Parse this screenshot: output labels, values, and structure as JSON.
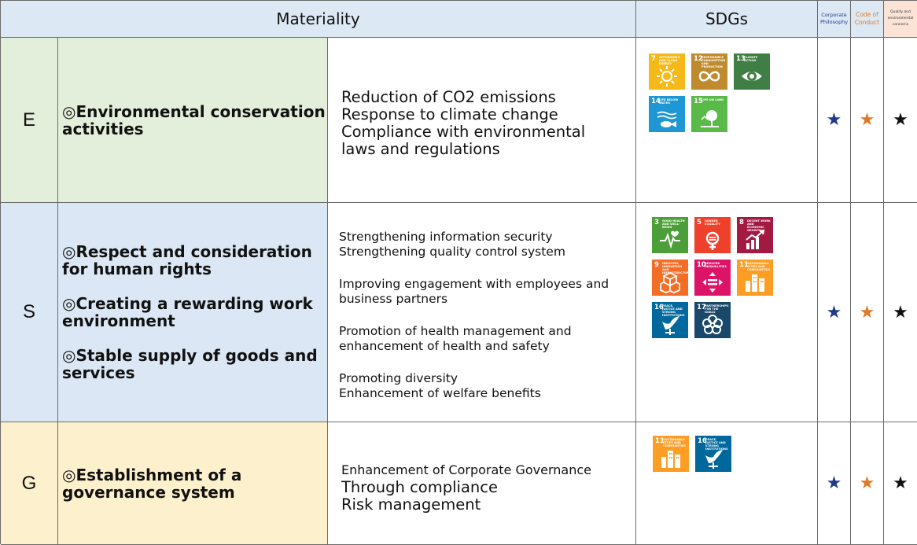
{
  "header": {
    "materiality": "Materiality",
    "sdgs": "SDGs",
    "col1": "Corporate Philosophy",
    "col2": "Code of Conduct",
    "col3": "Quality and environmental concerns"
  },
  "star_glyph": "★",
  "colors": {
    "star_navy": "#1f3a8a",
    "star_orange": "#e07a26",
    "star_black": "#111111"
  },
  "rows": {
    "e": {
      "letter": "E",
      "materiality": [
        "◎Environmental conservation activities"
      ],
      "activities": [
        "Reduction of CO2 emissions",
        "Response to climate change",
        "Compliance with environmental laws and regulations"
      ]
    },
    "s": {
      "letter": "S",
      "materiality": [
        "◎Respect and consideration for human rights",
        "◎Creating a rewarding work environment",
        "◎Stable supply of goods and services"
      ],
      "activities": [
        [
          "Strengthening information security",
          "Strengthening quality control system"
        ],
        [
          "Improving engagement with employees and business partners"
        ],
        [
          "Promotion of health management and enhancement of health and safety"
        ],
        [
          "Promoting diversity",
          "Enhancement of welfare benefits"
        ]
      ]
    },
    "g": {
      "letter": "G",
      "materiality": [
        "◎Establishment of a governance system"
      ],
      "activities": [
        "Enhancement of Corporate Governance",
        "Through compliance",
        "Risk management"
      ]
    }
  },
  "sdgs": {
    "g7": {
      "num": "7",
      "title": "AFFORDABLE AND CLEAN ENERGY",
      "color": "#f6b91a",
      "icon": "sun-icon"
    },
    "g12": {
      "num": "12",
      "title": "RESPONSIBLE CONSUMPTION AND PRODUCTION",
      "color": "#bf8b2e",
      "icon": "infinity-icon"
    },
    "g13": {
      "num": "13",
      "title": "CLIMATE ACTION",
      "color": "#3f7e44",
      "icon": "eye-globe-icon"
    },
    "g14": {
      "num": "14",
      "title": "LIFE BELOW WATER",
      "color": "#1f97d4",
      "icon": "fish-icon"
    },
    "g15": {
      "num": "15",
      "title": "LIFE ON LAND",
      "color": "#59ba47",
      "icon": "tree-icon"
    },
    "g3": {
      "num": "3",
      "title": "GOOD HEALTH AND WELL-BEING",
      "color": "#4c9f38",
      "icon": "heartbeat-icon"
    },
    "g5": {
      "num": "5",
      "title": "GENDER EQUALITY",
      "color": "#ef402b",
      "icon": "gender-icon"
    },
    "g8": {
      "num": "8",
      "title": "DECENT WORK AND ECONOMIC GROWTH",
      "color": "#a21942",
      "icon": "growth-chart-icon"
    },
    "g9": {
      "num": "9",
      "title": "INDUSTRY, INNOVATION AND INFRASTRUCTURE",
      "color": "#f36d25",
      "icon": "cubes-icon"
    },
    "g10": {
      "num": "10",
      "title": "REDUCED INEQUALITIES",
      "color": "#dd1367",
      "icon": "equality-icon"
    },
    "g11": {
      "num": "11",
      "title": "SUSTAINABLE CITIES AND COMMUNITIES",
      "color": "#fd9d24",
      "icon": "city-icon"
    },
    "g16": {
      "num": "16",
      "title": "PEACE, JUSTICE AND STRONG INSTITUTIONS",
      "color": "#00689d",
      "icon": "dove-icon"
    },
    "g17": {
      "num": "17",
      "title": "PARTNERSHIPS FOR THE GOALS",
      "color": "#19486a",
      "icon": "flower-rings-icon"
    }
  }
}
